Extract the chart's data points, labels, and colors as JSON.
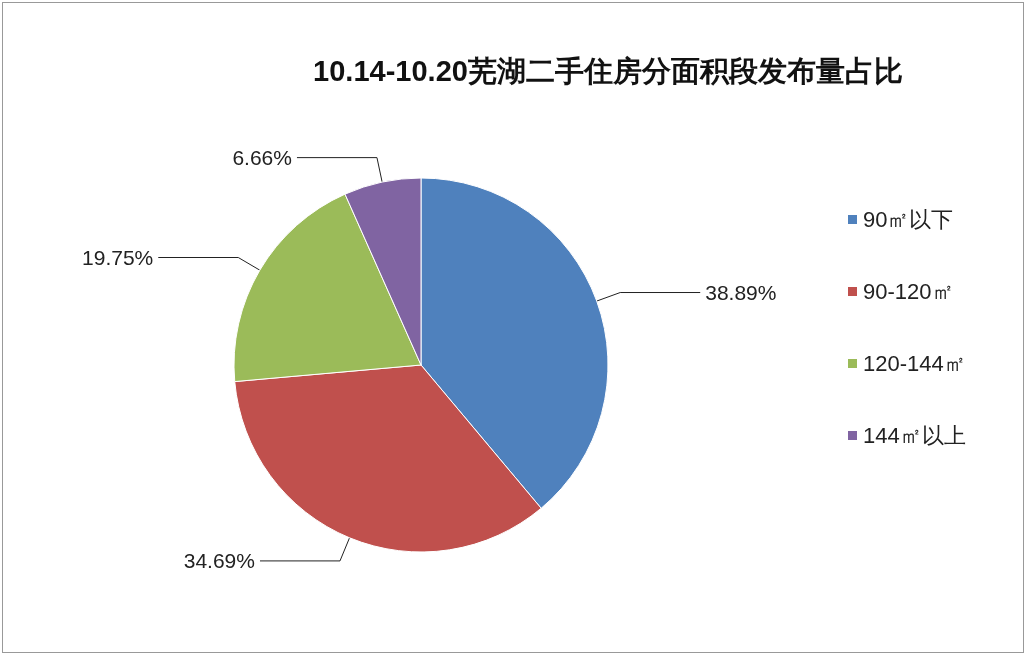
{
  "chart_data": {
    "type": "pie",
    "title": "10.14-10.20芜湖二手住房分面积段发布量占比",
    "categories": [
      "90㎡以下",
      "90-120㎡",
      "120-144㎡",
      "144㎡以上"
    ],
    "values": [
      38.89,
      34.69,
      19.75,
      6.66
    ],
    "value_labels": [
      "38.89%",
      "34.69%",
      "19.75%",
      "6.66%"
    ],
    "colors": [
      "#4f81bd",
      "#c0504d",
      "#9bbb59",
      "#8064a2"
    ],
    "legend": "right"
  }
}
